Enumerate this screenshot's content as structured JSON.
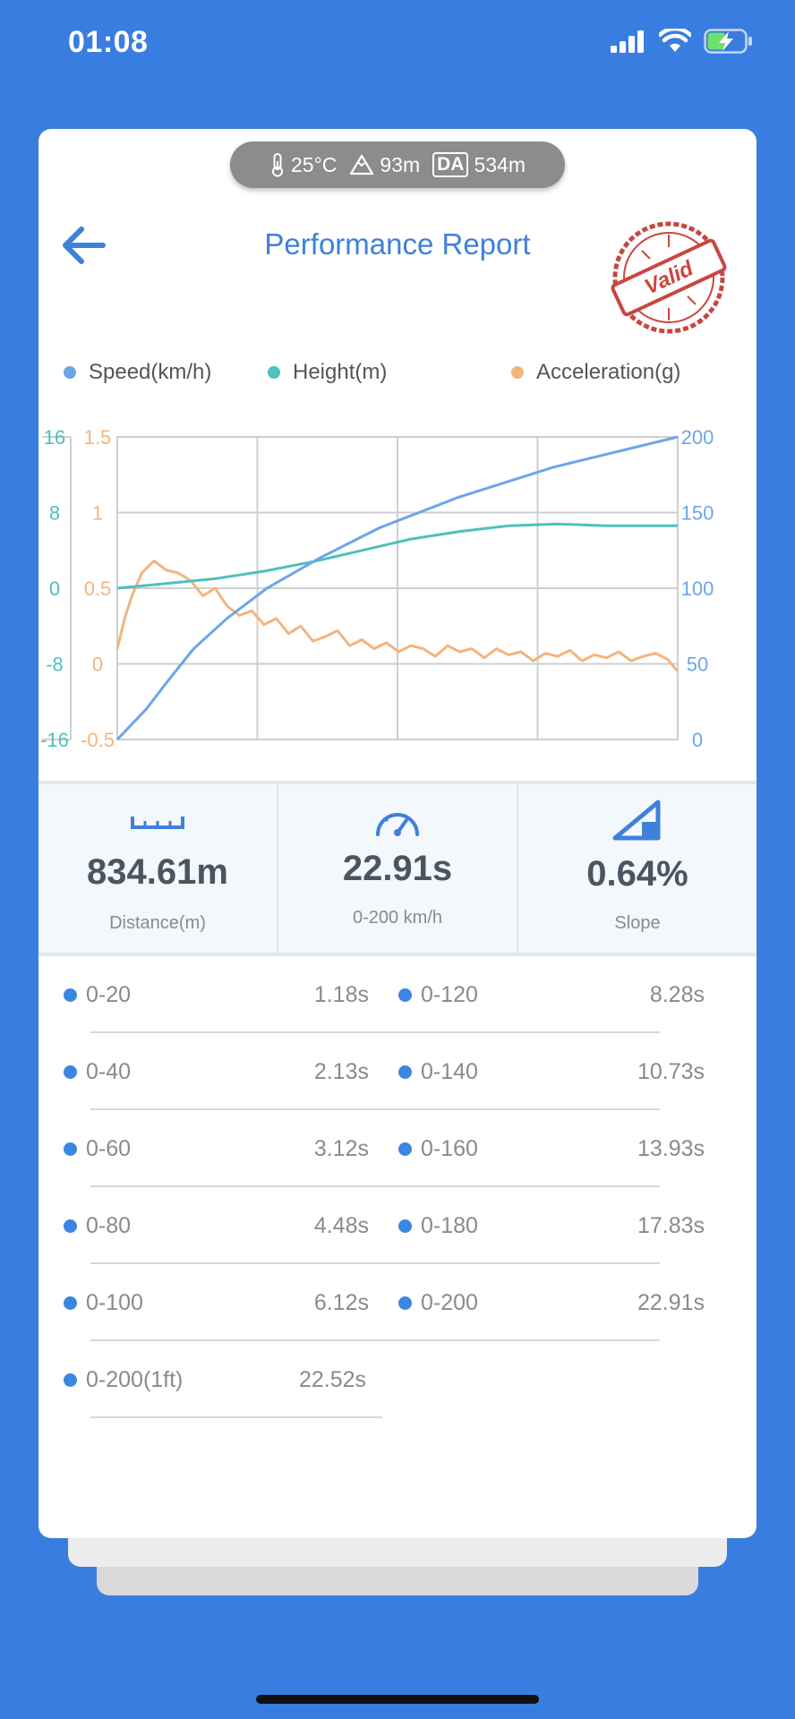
{
  "status_bar": {
    "time": "01:08"
  },
  "env": {
    "temperature": "25°C",
    "altitude": "93m",
    "da_label": "DA",
    "da_value": "534m"
  },
  "header": {
    "title": "Performance Report",
    "stamp_text": "Valid"
  },
  "legend": {
    "speed": "Speed(km/h)",
    "height": "Height(m)",
    "accel": "Acceleration(g)"
  },
  "colors": {
    "speed": "#6aa6e8",
    "height": "#4fc0bc",
    "accel": "#f3b47e",
    "accent": "#3f80d9",
    "background": "#3a7de0"
  },
  "chart_data": {
    "type": "line",
    "height_axis_ticks": [
      "16",
      "8",
      "0",
      "-8",
      "-16"
    ],
    "accel_axis_ticks": [
      "1.5",
      "1",
      "0.5",
      "0",
      "-0.5"
    ],
    "speed_axis_ticks": [
      "200",
      "150",
      "100",
      "50",
      "0"
    ],
    "x_range": [
      0,
      22.91
    ],
    "height_range": [
      -16,
      16
    ],
    "accel_range": [
      -0.5,
      1.5
    ],
    "speed_range": [
      0,
      200
    ],
    "grid": true,
    "series": [
      {
        "name": "Speed(km/h)",
        "axis": "speed",
        "x": [
          0,
          1.18,
          2.13,
          3.12,
          4.48,
          6.12,
          8.28,
          10.73,
          13.93,
          17.83,
          22.91
        ],
        "y": [
          0,
          20,
          40,
          60,
          80,
          100,
          120,
          140,
          160,
          180,
          200
        ]
      },
      {
        "name": "Height(m)",
        "axis": "height",
        "x": [
          0,
          2,
          4,
          6,
          8,
          10,
          12,
          14,
          16,
          18,
          20,
          22.91
        ],
        "y": [
          0,
          0.5,
          1.0,
          1.8,
          2.8,
          4.0,
          5.2,
          6.0,
          6.6,
          6.8,
          6.6,
          6.6
        ]
      },
      {
        "name": "Acceleration(g)",
        "axis": "accel",
        "x": [
          0,
          0.3,
          0.6,
          1.0,
          1.5,
          2.0,
          2.5,
          3.0,
          3.5,
          4.0,
          4.5,
          5.0,
          5.5,
          6.0,
          6.5,
          7.0,
          7.5,
          8.0,
          8.5,
          9.0,
          9.5,
          10.0,
          10.5,
          11.0,
          11.5,
          12.0,
          12.5,
          13.0,
          13.5,
          14.0,
          14.5,
          15.0,
          15.5,
          16.0,
          16.5,
          17.0,
          17.5,
          18.0,
          18.5,
          19.0,
          19.5,
          20.0,
          20.5,
          21.0,
          21.5,
          22.0,
          22.5,
          22.91
        ],
        "y": [
          0.1,
          0.3,
          0.45,
          0.6,
          0.68,
          0.62,
          0.6,
          0.55,
          0.45,
          0.5,
          0.38,
          0.32,
          0.35,
          0.26,
          0.3,
          0.2,
          0.25,
          0.15,
          0.18,
          0.22,
          0.12,
          0.16,
          0.1,
          0.14,
          0.08,
          0.12,
          0.1,
          0.05,
          0.12,
          0.08,
          0.1,
          0.04,
          0.1,
          0.06,
          0.08,
          0.02,
          0.07,
          0.05,
          0.09,
          0.02,
          0.06,
          0.04,
          0.08,
          0.02,
          0.05,
          0.07,
          0.03,
          -0.05
        ]
      }
    ]
  },
  "stats": {
    "distance": {
      "value": "834.61m",
      "label": "Distance(m)"
    },
    "time": {
      "value": "22.91s",
      "label": "0-200 km/h"
    },
    "slope": {
      "value": "0.64%",
      "label": "Slope"
    }
  },
  "results": [
    {
      "label": "0-20",
      "time": "1.18s"
    },
    {
      "label": "0-120",
      "time": "8.28s"
    },
    {
      "label": "0-40",
      "time": "2.13s"
    },
    {
      "label": "0-140",
      "time": "10.73s"
    },
    {
      "label": "0-60",
      "time": "3.12s"
    },
    {
      "label": "0-160",
      "time": "13.93s"
    },
    {
      "label": "0-80",
      "time": "4.48s"
    },
    {
      "label": "0-180",
      "time": "17.83s"
    },
    {
      "label": "0-100",
      "time": "6.12s"
    },
    {
      "label": "0-200",
      "time": "22.91s"
    },
    {
      "label": "0-200(1ft)",
      "time": "22.52s"
    }
  ]
}
